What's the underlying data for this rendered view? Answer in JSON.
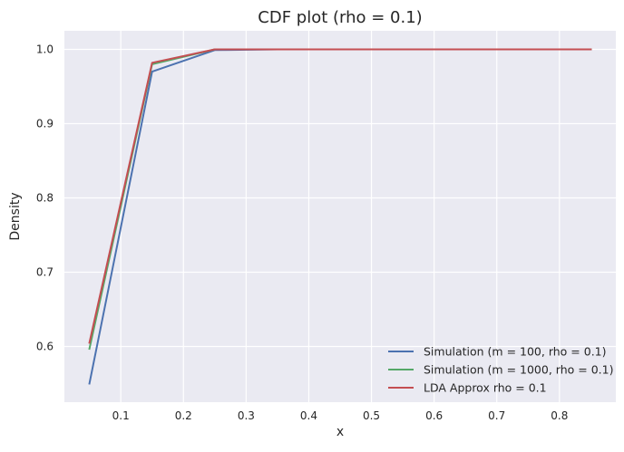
{
  "chart_data": {
    "type": "line",
    "title": "CDF plot (rho = 0.1)",
    "xlabel": "x",
    "ylabel": "Density",
    "xlim": [
      0.01,
      0.89
    ],
    "ylim": [
      0.525,
      1.025
    ],
    "xticks": [
      0.1,
      0.2,
      0.3,
      0.4,
      0.5,
      0.6,
      0.7,
      0.8
    ],
    "xtick_labels": [
      "0.1",
      "0.2",
      "0.3",
      "0.4",
      "0.5",
      "0.6",
      "0.7",
      "0.8"
    ],
    "yticks": [
      0.6,
      0.7,
      0.8,
      0.9,
      1.0
    ],
    "ytick_labels": [
      "0.6",
      "0.7",
      "0.8",
      "0.9",
      "1.0"
    ],
    "grid": true,
    "legend_position": "lower-right",
    "x": [
      0.05,
      0.15,
      0.25,
      0.35,
      0.45,
      0.55,
      0.65,
      0.75,
      0.85
    ],
    "series": [
      {
        "name": "Simulation (m = 100, rho = 0.1)",
        "color": "#4c72b0",
        "values": [
          0.55,
          0.97,
          0.999,
          1.0,
          1.0,
          1.0,
          1.0,
          1.0,
          1.0
        ]
      },
      {
        "name": "Simulation (m = 1000, rho = 0.1)",
        "color": "#55a868",
        "values": [
          0.597,
          0.98,
          1.0,
          1.0,
          1.0,
          1.0,
          1.0,
          1.0,
          1.0
        ]
      },
      {
        "name": "LDA Approx rho = 0.1",
        "color": "#c44e52",
        "values": [
          0.605,
          0.982,
          1.0,
          1.0,
          1.0,
          1.0,
          1.0,
          1.0,
          1.0
        ]
      }
    ]
  }
}
